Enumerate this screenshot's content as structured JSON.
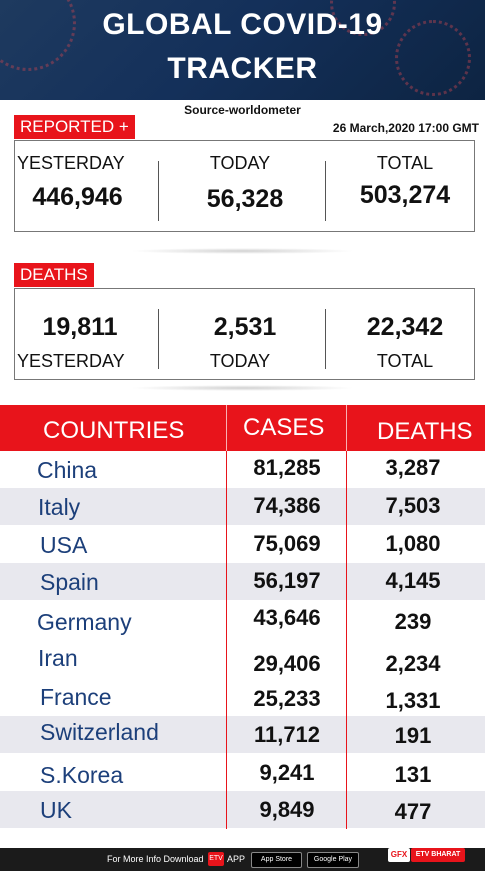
{
  "header": {
    "title_line1": "GLOBAL COVID-19",
    "title_line2": "TRACKER"
  },
  "source": "Source-worldometer",
  "date": "26 March,2020 17:00 GMT",
  "reported": {
    "tag": "REPORTED +",
    "yesterday_label": "YESTERDAY",
    "today_label": "TODAY",
    "total_label": "TOTAL",
    "yesterday": "446,946",
    "today": "56,328",
    "total": "503,274"
  },
  "deaths": {
    "tag": "DEATHS",
    "yesterday_label": "YESTERDAY",
    "today_label": "TODAY",
    "total_label": "TOTAL",
    "yesterday": "19,811",
    "today": "2,531",
    "total": "22,342"
  },
  "table": {
    "headers": [
      "COUNTRIES",
      "CASES",
      "DEATHS"
    ],
    "rows": [
      {
        "country": "China",
        "cases": "81,285",
        "deaths": "3,287"
      },
      {
        "country": "Italy",
        "cases": "74,386",
        "deaths": "7,503"
      },
      {
        "country": "USA",
        "cases": "75,069",
        "deaths": "1,080"
      },
      {
        "country": "Spain",
        "cases": "56,197",
        "deaths": "4,145"
      },
      {
        "country": "Germany",
        "cases": "43,646",
        "deaths": "239"
      },
      {
        "country": "Iran",
        "cases": "29,406",
        "deaths": "2,234"
      },
      {
        "country": "France",
        "cases": "25,233",
        "deaths": "1,331"
      },
      {
        "country": "Switzerland",
        "cases": "11,712",
        "deaths": "191"
      },
      {
        "country": "S.Korea",
        "cases": "9,241",
        "deaths": "131"
      },
      {
        "country": "UK",
        "cases": "9,849",
        "deaths": "477"
      }
    ]
  },
  "footer": {
    "info": "For More Info Download",
    "app": "APP",
    "etv_logo": "ETV",
    "app_store": "App Store",
    "google_play": "Google Play",
    "gfx": "GFX",
    "brand": "ETV BHARAT"
  },
  "colors": {
    "accent": "#e8141b",
    "header_bg": "#14305a",
    "country_text": "#1c3f7a"
  }
}
